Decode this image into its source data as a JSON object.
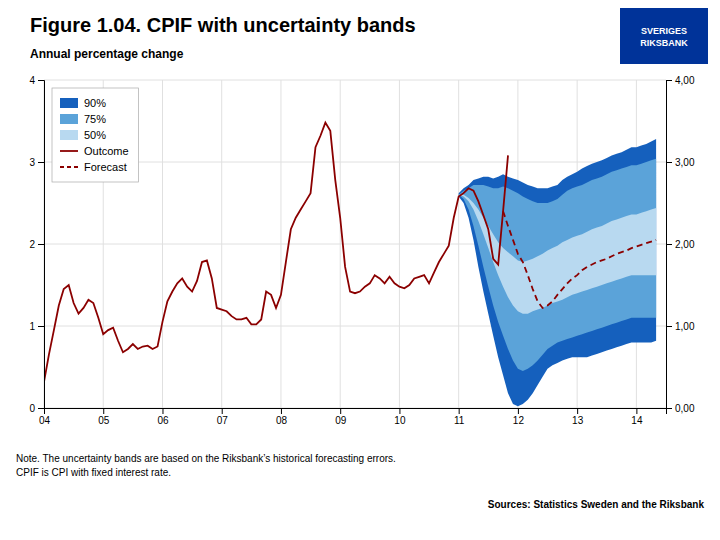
{
  "chart_data": {
    "type": "fan",
    "title": "Figure 1.04. CPIF with uncertainty bands",
    "subtitle": "Annual percentage change",
    "note": "Note. The uncertainty bands are based on the Riksbank’s historical forecasting errors.\nCPIF is CPI with fixed interest rate.",
    "source": "Sources: Statistics Sweden and the Riksbank",
    "annotations": [
      "SVERIGES\nRIKSBANK"
    ],
    "xlim": [
      2004.0,
      2014.5
    ],
    "ylim": [
      0,
      4
    ],
    "y2lim": [
      0,
      4
    ],
    "xticks": [
      {
        "value": 2004,
        "label": "04"
      },
      {
        "value": 2005,
        "label": "05"
      },
      {
        "value": 2006,
        "label": "06"
      },
      {
        "value": 2007,
        "label": "07"
      },
      {
        "value": 2008,
        "label": "08"
      },
      {
        "value": 2009,
        "label": "09"
      },
      {
        "value": 2010,
        "label": "10"
      },
      {
        "value": 2011,
        "label": "11"
      },
      {
        "value": 2012,
        "label": "12"
      },
      {
        "value": 2013,
        "label": "13"
      },
      {
        "value": 2014,
        "label": "14"
      }
    ],
    "yticks": [
      0,
      1,
      2,
      3,
      4
    ],
    "y2ticks": [
      {
        "value": 0,
        "label": "0,00"
      },
      {
        "value": 1,
        "label": "1,00"
      },
      {
        "value": 2,
        "label": "2,00"
      },
      {
        "value": 3,
        "label": "3,00"
      },
      {
        "value": 4,
        "label": "4,00"
      }
    ],
    "grid": true,
    "legend": "upper left",
    "series": [
      {
        "name": "90%",
        "type": "band",
        "color": "#1560bd",
        "x": [
          2011.0,
          2011.083,
          2011.167,
          2011.25,
          2011.333,
          2011.417,
          2011.5,
          2011.583,
          2011.667,
          2011.75,
          2011.833,
          2011.917,
          2012.0,
          2012.083,
          2012.167,
          2012.25,
          2012.333,
          2012.417,
          2012.5,
          2012.583,
          2012.667,
          2012.75,
          2012.833,
          2012.917,
          2013.0,
          2013.083,
          2013.167,
          2013.25,
          2013.333,
          2013.417,
          2013.5,
          2013.583,
          2013.667,
          2013.75,
          2013.833,
          2013.917,
          2014.0,
          2014.083,
          2014.167,
          2014.25,
          2014.333
        ],
        "lower": [
          2.58,
          2.5,
          2.32,
          2.05,
          1.72,
          1.42,
          1.15,
          0.88,
          0.62,
          0.4,
          0.18,
          0.05,
          0.02,
          0.05,
          0.1,
          0.18,
          0.28,
          0.38,
          0.48,
          0.52,
          0.55,
          0.58,
          0.6,
          0.62,
          0.62,
          0.62,
          0.62,
          0.64,
          0.66,
          0.68,
          0.7,
          0.72,
          0.74,
          0.76,
          0.78,
          0.8,
          0.8,
          0.8,
          0.8,
          0.8,
          0.82
        ],
        "upper": [
          2.62,
          2.68,
          2.72,
          2.78,
          2.8,
          2.82,
          2.82,
          2.8,
          2.82,
          2.85,
          2.82,
          2.8,
          2.78,
          2.75,
          2.72,
          2.7,
          2.68,
          2.68,
          2.68,
          2.7,
          2.72,
          2.78,
          2.82,
          2.85,
          2.88,
          2.92,
          2.95,
          2.98,
          3.0,
          3.02,
          3.05,
          3.08,
          3.1,
          3.12,
          3.15,
          3.18,
          3.18,
          3.2,
          3.22,
          3.25,
          3.28
        ]
      },
      {
        "name": "75%",
        "type": "band",
        "color": "#5ba3d9",
        "x": [
          2011.0,
          2011.083,
          2011.167,
          2011.25,
          2011.333,
          2011.417,
          2011.5,
          2011.583,
          2011.667,
          2011.75,
          2011.833,
          2011.917,
          2012.0,
          2012.083,
          2012.167,
          2012.25,
          2012.333,
          2012.417,
          2012.5,
          2012.583,
          2012.667,
          2012.75,
          2012.833,
          2012.917,
          2013.0,
          2013.083,
          2013.167,
          2013.25,
          2013.333,
          2013.417,
          2013.5,
          2013.583,
          2013.667,
          2013.75,
          2013.833,
          2013.917,
          2014.0,
          2014.083,
          2014.167,
          2014.25,
          2014.333
        ],
        "lower": [
          2.6,
          2.55,
          2.42,
          2.22,
          1.98,
          1.72,
          1.48,
          1.25,
          1.05,
          0.88,
          0.72,
          0.58,
          0.48,
          0.45,
          0.48,
          0.52,
          0.58,
          0.65,
          0.72,
          0.76,
          0.8,
          0.82,
          0.84,
          0.86,
          0.88,
          0.9,
          0.92,
          0.94,
          0.96,
          0.98,
          1.0,
          1.02,
          1.04,
          1.06,
          1.08,
          1.1,
          1.1,
          1.1,
          1.1,
          1.1,
          1.1
        ],
        "upper": [
          2.6,
          2.65,
          2.68,
          2.72,
          2.72,
          2.72,
          2.7,
          2.68,
          2.68,
          2.7,
          2.68,
          2.65,
          2.62,
          2.58,
          2.55,
          2.52,
          2.5,
          2.5,
          2.5,
          2.52,
          2.55,
          2.6,
          2.65,
          2.68,
          2.7,
          2.72,
          2.75,
          2.78,
          2.8,
          2.82,
          2.85,
          2.88,
          2.9,
          2.92,
          2.94,
          2.96,
          2.96,
          2.98,
          3.0,
          3.02,
          3.04
        ]
      },
      {
        "name": "50%",
        "type": "band",
        "color": "#b8d9f0",
        "x": [
          2011.0,
          2011.083,
          2011.167,
          2011.25,
          2011.333,
          2011.417,
          2011.5,
          2011.583,
          2011.667,
          2011.75,
          2011.833,
          2011.917,
          2012.0,
          2012.083,
          2012.167,
          2012.25,
          2012.333,
          2012.417,
          2012.5,
          2012.583,
          2012.667,
          2012.75,
          2012.833,
          2012.917,
          2013.0,
          2013.083,
          2013.167,
          2013.25,
          2013.333,
          2013.417,
          2013.5,
          2013.583,
          2013.667,
          2013.75,
          2013.833,
          2013.917,
          2014.0,
          2014.083,
          2014.167,
          2014.25,
          2014.333
        ],
        "lower": [
          2.6,
          2.58,
          2.52,
          2.42,
          2.28,
          2.12,
          1.95,
          1.78,
          1.62,
          1.48,
          1.35,
          1.25,
          1.18,
          1.15,
          1.15,
          1.18,
          1.2,
          1.22,
          1.25,
          1.28,
          1.3,
          1.32,
          1.35,
          1.38,
          1.4,
          1.42,
          1.44,
          1.46,
          1.48,
          1.5,
          1.52,
          1.54,
          1.56,
          1.58,
          1.6,
          1.62,
          1.62,
          1.62,
          1.62,
          1.62,
          1.62
        ],
        "upper": [
          2.6,
          2.6,
          2.56,
          2.5,
          2.42,
          2.32,
          2.22,
          2.12,
          2.02,
          1.95,
          1.9,
          1.85,
          1.8,
          1.78,
          1.8,
          1.82,
          1.85,
          1.88,
          1.92,
          1.95,
          1.98,
          2.02,
          2.05,
          2.08,
          2.1,
          2.12,
          2.15,
          2.18,
          2.2,
          2.22,
          2.25,
          2.28,
          2.3,
          2.32,
          2.34,
          2.36,
          2.36,
          2.38,
          2.4,
          2.42,
          2.44
        ]
      },
      {
        "name": "Outcome",
        "type": "line",
        "color": "#8b0000",
        "line_style": "solid",
        "x": [
          2004.0,
          2004.083,
          2004.167,
          2004.25,
          2004.333,
          2004.417,
          2004.5,
          2004.583,
          2004.667,
          2004.75,
          2004.833,
          2004.917,
          2005.0,
          2005.083,
          2005.167,
          2005.25,
          2005.333,
          2005.417,
          2005.5,
          2005.583,
          2005.667,
          2005.75,
          2005.833,
          2005.917,
          2006.0,
          2006.083,
          2006.167,
          2006.25,
          2006.333,
          2006.417,
          2006.5,
          2006.583,
          2006.667,
          2006.75,
          2006.833,
          2006.917,
          2007.0,
          2007.083,
          2007.167,
          2007.25,
          2007.333,
          2007.417,
          2007.5,
          2007.583,
          2007.667,
          2007.75,
          2007.833,
          2007.917,
          2008.0,
          2008.083,
          2008.167,
          2008.25,
          2008.333,
          2008.417,
          2008.5,
          2008.583,
          2008.667,
          2008.75,
          2008.833,
          2008.917,
          2009.0,
          2009.083,
          2009.167,
          2009.25,
          2009.333,
          2009.417,
          2009.5,
          2009.583,
          2009.667,
          2009.75,
          2009.833,
          2009.917,
          2010.0,
          2010.083,
          2010.167,
          2010.25,
          2010.333,
          2010.417,
          2010.5,
          2010.583,
          2010.667,
          2010.75,
          2010.833,
          2010.917,
          2011.0,
          2011.083,
          2011.167,
          2011.25,
          2011.333,
          2011.417,
          2011.5,
          2011.583,
          2011.667,
          2011.75,
          2011.833
        ],
        "values": [
          0.32,
          0.65,
          0.95,
          1.25,
          1.45,
          1.5,
          1.28,
          1.15,
          1.22,
          1.32,
          1.28,
          1.1,
          0.9,
          0.95,
          0.98,
          0.82,
          0.68,
          0.72,
          0.78,
          0.72,
          0.75,
          0.76,
          0.72,
          0.75,
          1.05,
          1.3,
          1.42,
          1.52,
          1.58,
          1.48,
          1.42,
          1.55,
          1.78,
          1.8,
          1.58,
          1.22,
          1.2,
          1.18,
          1.12,
          1.08,
          1.08,
          1.1,
          1.02,
          1.02,
          1.08,
          1.42,
          1.38,
          1.22,
          1.38,
          1.78,
          2.18,
          2.32,
          2.42,
          2.52,
          2.62,
          3.18,
          3.32,
          3.48,
          3.38,
          2.78,
          2.32,
          1.72,
          1.42,
          1.4,
          1.42,
          1.48,
          1.52,
          1.62,
          1.58,
          1.52,
          1.6,
          1.52,
          1.48,
          1.46,
          1.5,
          1.58,
          1.6,
          1.62,
          1.52,
          1.65,
          1.78,
          1.88,
          1.98,
          2.32,
          2.58,
          2.62,
          2.68,
          2.65,
          2.52,
          2.35,
          2.18,
          1.82,
          1.75,
          2.4,
          3.08
        ]
      },
      {
        "name": "Forecast",
        "type": "line",
        "color": "#8b0000",
        "line_style": "dashed",
        "x": [
          2011.75,
          2011.833,
          2011.917,
          2012.0,
          2012.083,
          2012.167,
          2012.25,
          2012.333,
          2012.417,
          2012.5,
          2012.583,
          2012.667,
          2012.75,
          2012.833,
          2012.917,
          2013.0,
          2013.083,
          2013.167,
          2013.25,
          2013.333,
          2013.417,
          2013.5,
          2013.583,
          2013.667,
          2013.75,
          2013.833,
          2013.917,
          2014.0,
          2014.083,
          2014.167,
          2014.25,
          2014.333
        ],
        "values": [
          2.4,
          2.22,
          2.05,
          1.88,
          1.78,
          1.62,
          1.45,
          1.3,
          1.22,
          1.25,
          1.3,
          1.38,
          1.45,
          1.52,
          1.58,
          1.62,
          1.68,
          1.72,
          1.75,
          1.78,
          1.8,
          1.82,
          1.85,
          1.88,
          1.9,
          1.92,
          1.95,
          1.97,
          1.99,
          2.01,
          2.03,
          2.05
        ]
      }
    ]
  }
}
